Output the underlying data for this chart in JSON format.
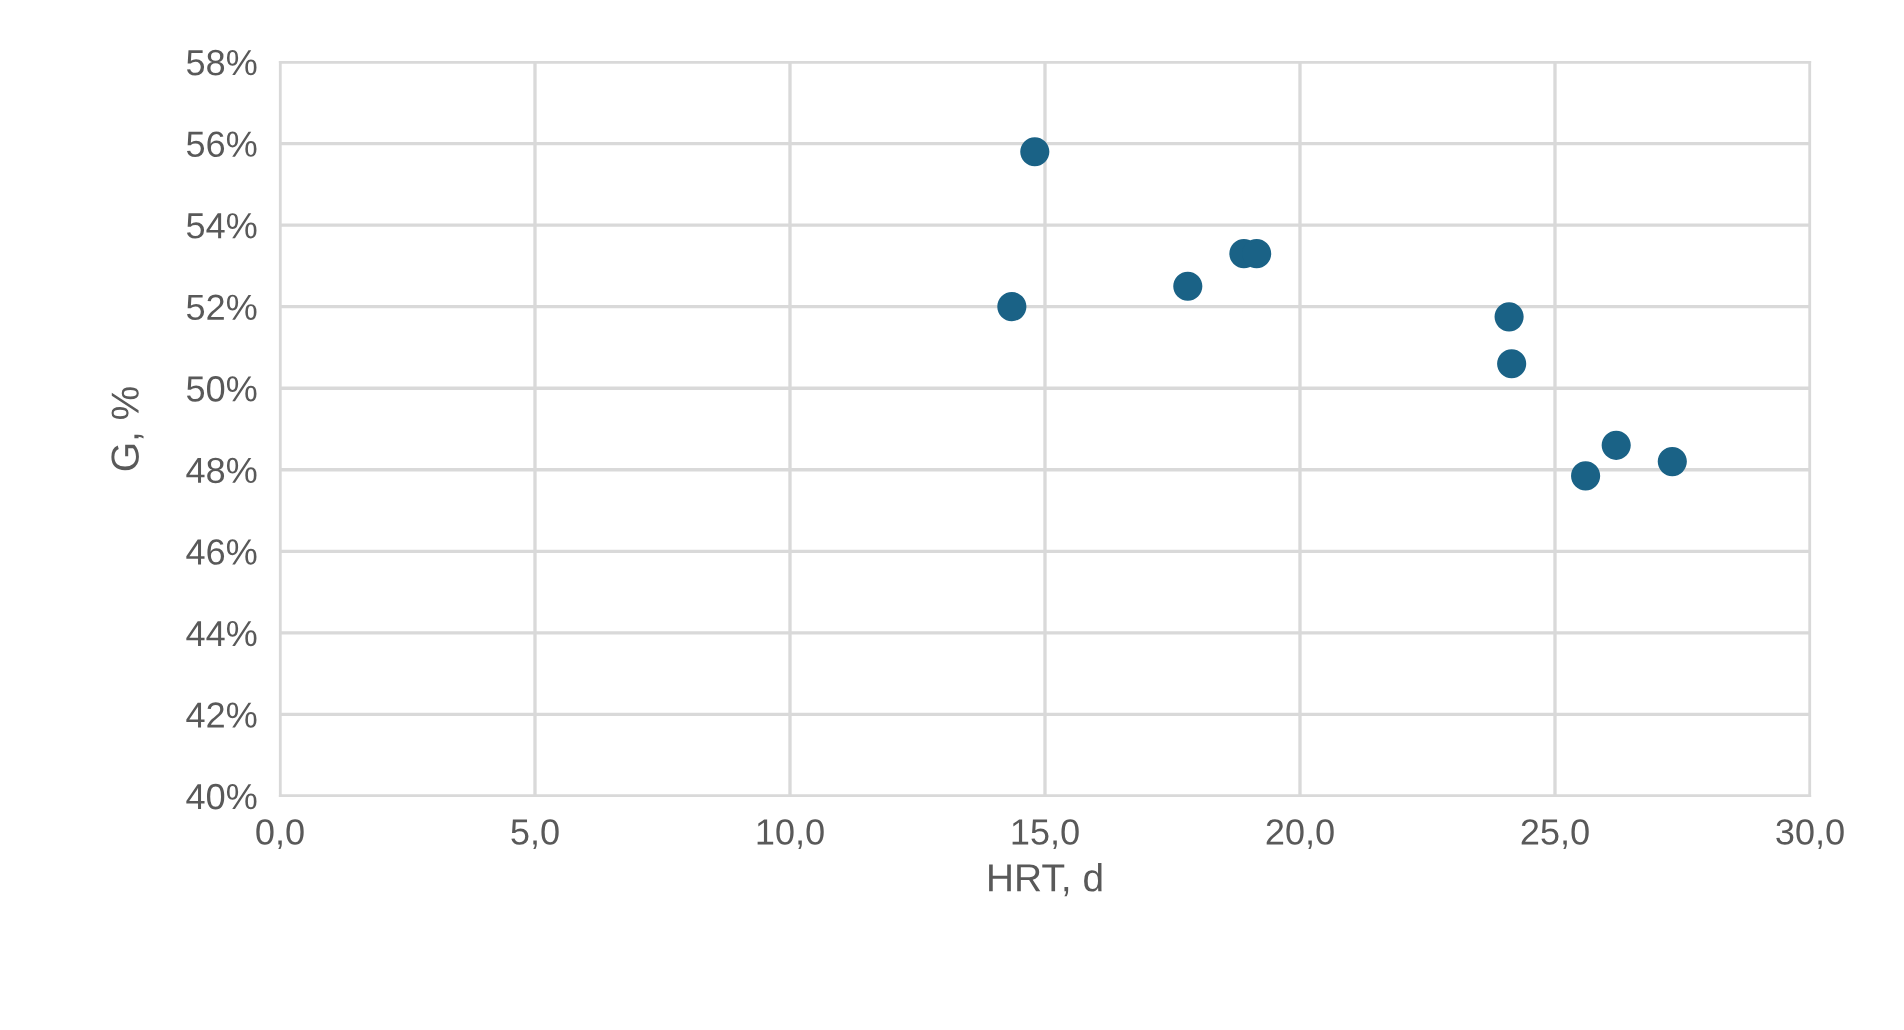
{
  "chart_data": {
    "type": "scatter",
    "xlabel": "HRT, d",
    "ylabel": "G, %",
    "series": [
      {
        "color": "#1a6286",
        "x": [
          14.8,
          14.35,
          17.8,
          18.9,
          19.15,
          24.1,
          24.15,
          25.6,
          26.2,
          27.3
        ],
        "values": [
          55.8,
          52.0,
          52.5,
          53.3,
          53.3,
          51.75,
          50.6,
          47.85,
          48.6,
          48.2
        ]
      }
    ],
    "xlim": [
      0,
      30
    ],
    "xticks": [
      {
        "value": 0,
        "label": "0,0"
      },
      {
        "value": 5,
        "label": "5,0"
      },
      {
        "value": 10,
        "label": "10,0"
      },
      {
        "value": 15,
        "label": "15,0"
      },
      {
        "value": 20,
        "label": "20,0"
      },
      {
        "value": 25,
        "label": "25,0"
      },
      {
        "value": 30,
        "label": "30,0"
      }
    ],
    "ylim": [
      40,
      58
    ],
    "yticks": [
      {
        "value": 40,
        "label": "40%"
      },
      {
        "value": 42,
        "label": "42%"
      },
      {
        "value": 44,
        "label": "44%"
      },
      {
        "value": 46,
        "label": "46%"
      },
      {
        "value": 48,
        "label": "48%"
      },
      {
        "value": 50,
        "label": "50%"
      },
      {
        "value": 52,
        "label": "52%"
      },
      {
        "value": 54,
        "label": "54%"
      },
      {
        "value": 56,
        "label": "56%"
      },
      {
        "value": 58,
        "label": "58%"
      }
    ],
    "grid": true,
    "marker": "circle"
  }
}
